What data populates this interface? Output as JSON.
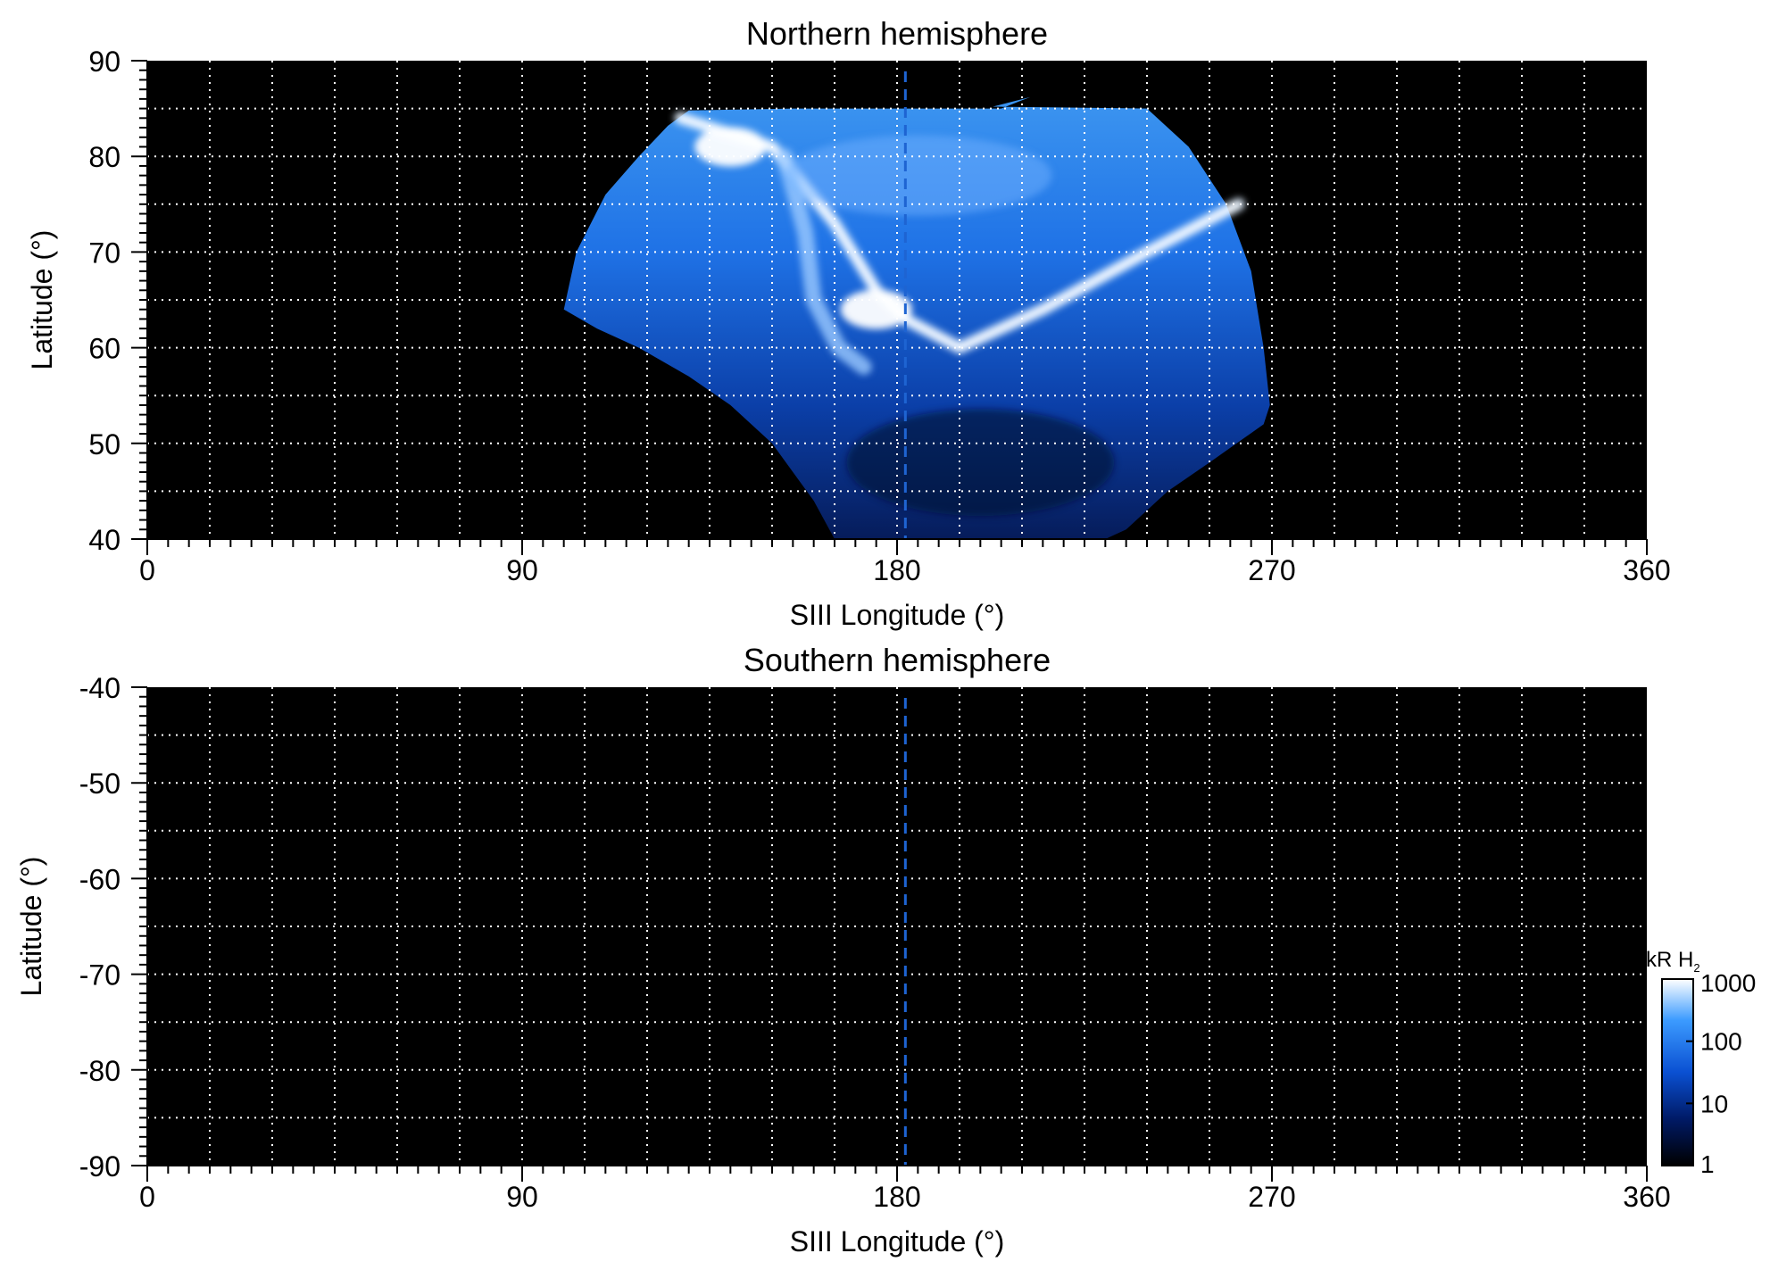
{
  "chart_data": [
    {
      "type": "heatmap",
      "title": "Northern hemisphere",
      "xlabel": "SIII Longitude (°)",
      "ylabel": "Latitude (°)",
      "xlim": [
        0,
        360
      ],
      "ylim": [
        40,
        90
      ],
      "x_ticks": [
        "0",
        "90",
        "180",
        "270",
        "360"
      ],
      "y_ticks": [
        "40",
        "50",
        "60",
        "70",
        "80",
        "90"
      ],
      "grid": true,
      "reference_line": {
        "x": 182,
        "style": "dashed",
        "color": "#1e64d2"
      },
      "emission_region": {
        "lon_range": [
          100,
          268
        ],
        "lat_range": [
          40,
          85
        ],
        "main_oval": [
          [
            128,
            84
          ],
          [
            150,
            81
          ],
          [
            165,
            73
          ],
          [
            175,
            66
          ],
          [
            182,
            63
          ],
          [
            195,
            60
          ],
          [
            215,
            64
          ],
          [
            240,
            70
          ],
          [
            262,
            75
          ]
        ],
        "secondary_arc": [
          [
            153,
            80
          ],
          [
            158,
            72
          ],
          [
            160,
            65
          ],
          [
            166,
            60
          ],
          [
            172,
            58
          ]
        ],
        "brightest_spots": [
          [
            140,
            81
          ],
          [
            175,
            64
          ]
        ]
      }
    },
    {
      "type": "heatmap",
      "title": "Southern hemisphere",
      "xlabel": "SIII Longitude (°)",
      "ylabel": "Latitude (°)",
      "xlim": [
        0,
        360
      ],
      "ylim": [
        -90,
        -40
      ],
      "x_ticks": [
        "0",
        "90",
        "180",
        "270",
        "360"
      ],
      "y_ticks": [
        "-90",
        "-80",
        "-70",
        "-60",
        "-50",
        "-40"
      ],
      "grid": true,
      "reference_line": {
        "x": 182,
        "style": "dashed",
        "color": "#1e64d2"
      },
      "emission_region": null
    }
  ],
  "colorbar": {
    "label_main": "kR H",
    "label_sub": "2",
    "scale": "log",
    "range": [
      1,
      1000
    ],
    "ticks": [
      "1",
      "10",
      "100",
      "1000"
    ],
    "colors": [
      "#000000",
      "#001a66",
      "#0a50d2",
      "#3c9bff",
      "#ffffff"
    ]
  },
  "colors": {
    "background": "#000000",
    "grid": "#ffffff",
    "accent": "#1e64d2"
  }
}
